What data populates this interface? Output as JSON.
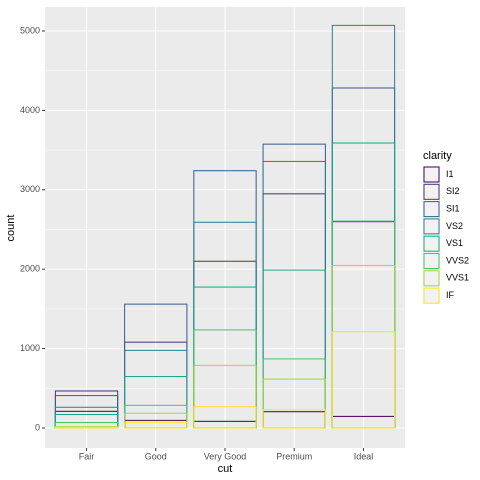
{
  "chart_data": {
    "type": "bar",
    "position": "identity",
    "x_label": "cut",
    "y_label": "count",
    "legend_title": "clarity",
    "categories": [
      "Fair",
      "Good",
      "Very Good",
      "Premium",
      "Ideal"
    ],
    "series": [
      {
        "name": "I1",
        "color": "#440154",
        "values": [
          210,
          96,
          84,
          205,
          146
        ]
      },
      {
        "name": "SI2",
        "color": "#46337E",
        "values": [
          466,
          1081,
          2100,
          2949,
          2598
        ]
      },
      {
        "name": "SI1",
        "color": "#365C8D",
        "values": [
          408,
          1560,
          3240,
          3575,
          4282
        ]
      },
      {
        "name": "VS2",
        "color": "#277F8E",
        "values": [
          261,
          978,
          2591,
          3357,
          5071
        ]
      },
      {
        "name": "VS1",
        "color": "#1FA187",
        "values": [
          170,
          648,
          1775,
          1989,
          3589
        ]
      },
      {
        "name": "VVS2",
        "color": "#4AC16D",
        "values": [
          69,
          286,
          1235,
          870,
          2606
        ]
      },
      {
        "name": "VVS1",
        "color": "#9FDA3A",
        "values": [
          17,
          186,
          789,
          616,
          2047
        ]
      },
      {
        "name": "IF",
        "color": "#FDE725",
        "values": [
          9,
          71,
          268,
          230,
          1212
        ]
      }
    ],
    "ylim": [
      -252,
      5302
    ],
    "yticks": [
      0,
      1000,
      2000,
      3000,
      4000,
      5000
    ],
    "grid": true
  }
}
